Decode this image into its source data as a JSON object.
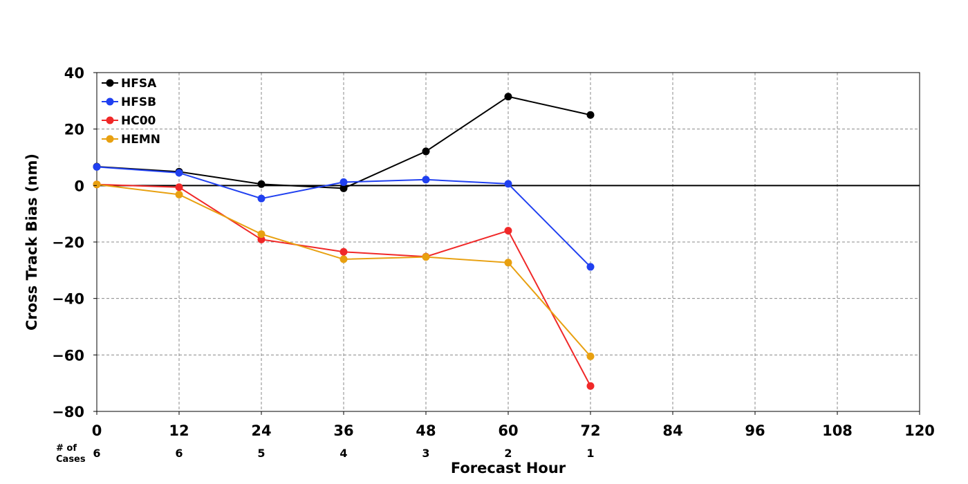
{
  "chart_data": {
    "type": "line",
    "xlabel": "Forecast Hour",
    "ylabel": "Cross Track Bias (nm)",
    "xlim": [
      0,
      120
    ],
    "ylim": [
      -80,
      40
    ],
    "xticks": [
      0,
      12,
      24,
      36,
      48,
      60,
      72,
      84,
      96,
      108,
      120
    ],
    "yticks": [
      40,
      20,
      0,
      -20,
      -40,
      -60,
      -80
    ],
    "ytick_labels": [
      "40",
      "20",
      "0",
      "−20",
      "−40",
      "−60",
      "−80"
    ],
    "grid": true,
    "zero_line": true,
    "legend_position": "top-left",
    "cases": {
      "label_line1": "# of",
      "label_line2": "Cases",
      "x": [
        0,
        12,
        24,
        36,
        48,
        60,
        72
      ],
      "values": [
        "6",
        "6",
        "5",
        "4",
        "3",
        "2",
        "1"
      ]
    },
    "x": [
      0,
      12,
      24,
      36,
      48,
      60,
      72
    ],
    "series": [
      {
        "name": "HFSA",
        "color": "#000000",
        "values": [
          6.7,
          4.9,
          0.5,
          -1.0,
          12.1,
          31.5,
          25.0
        ]
      },
      {
        "name": "HFSB",
        "color": "#2040f0",
        "values": [
          6.6,
          4.5,
          -4.6,
          1.2,
          2.1,
          0.6,
          -28.8
        ]
      },
      {
        "name": "HC00",
        "color": "#f02828",
        "values": [
          0.4,
          -0.6,
          -19.1,
          -23.5,
          -25.2,
          -16.0,
          -71.0
        ]
      },
      {
        "name": "HEMN",
        "color": "#e8a010",
        "values": [
          0.4,
          -3.2,
          -17.2,
          -26.1,
          -25.3,
          -27.3,
          -60.5
        ]
      }
    ]
  }
}
